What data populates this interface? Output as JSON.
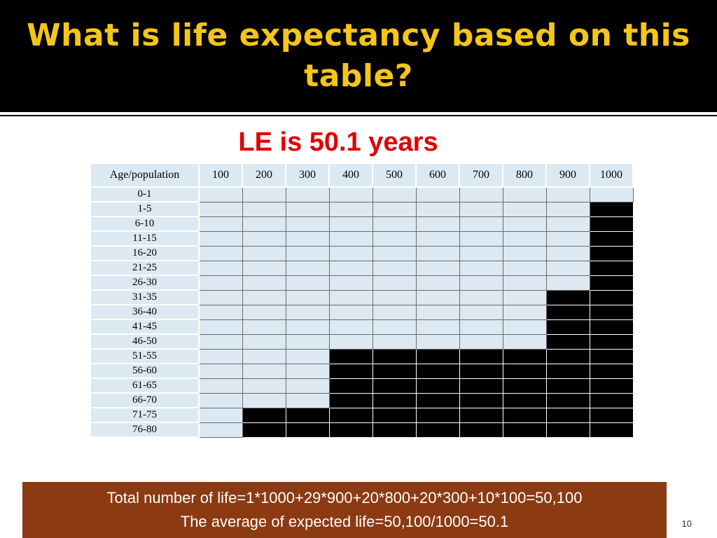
{
  "slide": {
    "title_line1": "What is life expectancy based on this",
    "title_line2": "table?",
    "le_result": "LE is 50.1 years",
    "page_number": "10",
    "colors": {
      "title": "#f5c518",
      "le": "#e00000",
      "summary_bg": "#8b3a12",
      "cell": "#dce9f2",
      "filled": "#000000"
    }
  },
  "table": {
    "header_label": "Age/population",
    "columns": [
      "100",
      "200",
      "300",
      "400",
      "500",
      "600",
      "700",
      "800",
      "900",
      "1000"
    ],
    "rows": [
      {
        "age": "0-1",
        "survivors": 1000
      },
      {
        "age": "1-5",
        "survivors": 900
      },
      {
        "age": "6-10",
        "survivors": 900
      },
      {
        "age": "11-15",
        "survivors": 900
      },
      {
        "age": "16-20",
        "survivors": 900
      },
      {
        "age": "21-25",
        "survivors": 900
      },
      {
        "age": "26-30",
        "survivors": 900
      },
      {
        "age": "31-35",
        "survivors": 800
      },
      {
        "age": "36-40",
        "survivors": 800
      },
      {
        "age": "41-45",
        "survivors": 800
      },
      {
        "age": "46-50",
        "survivors": 800
      },
      {
        "age": "51-55",
        "survivors": 300
      },
      {
        "age": "56-60",
        "survivors": 300
      },
      {
        "age": "61-65",
        "survivors": 300
      },
      {
        "age": "66-70",
        "survivors": 300
      },
      {
        "age": "71-75",
        "survivors": 100
      },
      {
        "age": "76-80",
        "survivors": 100
      }
    ]
  },
  "summary": {
    "line1": "Total number of life=1*1000+29*900+20*800+20*300+10*100=50,100",
    "line2": "The average of expected life=50,100/1000=50.1"
  }
}
